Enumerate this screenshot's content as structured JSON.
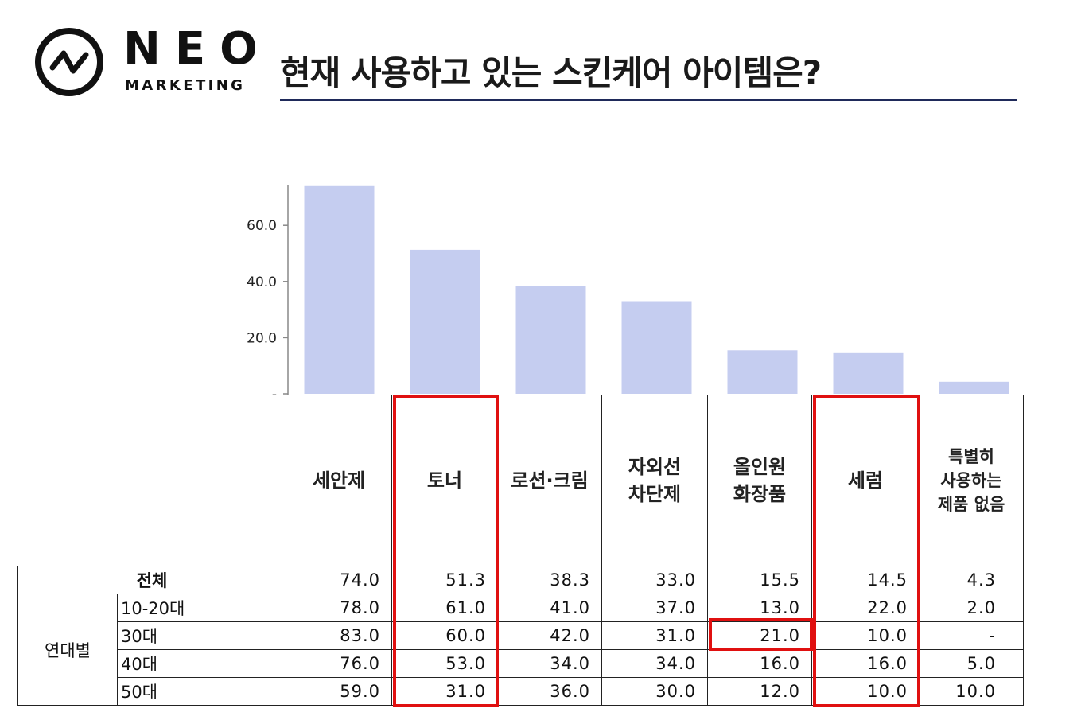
{
  "brand": {
    "name": "NEO",
    "sub": "MARKETING"
  },
  "title": "현재 사용하고 있는 스킨케어 아이템은?",
  "colors": {
    "bar": "#c5cdf0",
    "highlight": "#e01010",
    "rule": "#1f2a5a"
  },
  "chart_data": {
    "type": "bar",
    "categories": [
      "세안제",
      "토너",
      "로션·크림",
      "자외선\n차단제",
      "올인원\n화장품",
      "세럼",
      "특별히\n사용하는\n제품 없음"
    ],
    "values": [
      74.0,
      51.3,
      38.3,
      33.0,
      15.5,
      14.5,
      4.3
    ],
    "yticks": [
      "-",
      "20.0",
      "40.0",
      "60.0"
    ],
    "ylim": [
      0,
      74
    ],
    "grid": false
  },
  "table": {
    "total_label": "전체",
    "group_label": "연대별",
    "rows": [
      {
        "label": "10-20대",
        "values": [
          "78.0",
          "61.0",
          "41.0",
          "37.0",
          "13.0",
          "22.0",
          "2.0"
        ]
      },
      {
        "label": "30대",
        "values": [
          "83.0",
          "60.0",
          "42.0",
          "31.0",
          "21.0",
          "10.0",
          "-"
        ]
      },
      {
        "label": "40대",
        "values": [
          "76.0",
          "53.0",
          "34.0",
          "34.0",
          "16.0",
          "16.0",
          "5.0"
        ]
      },
      {
        "label": "50대",
        "values": [
          "59.0",
          "31.0",
          "36.0",
          "30.0",
          "12.0",
          "10.0",
          "10.0"
        ]
      }
    ],
    "total_values": [
      "74.0",
      "51.3",
      "38.3",
      "33.0",
      "15.5",
      "14.5",
      "4.3"
    ]
  }
}
